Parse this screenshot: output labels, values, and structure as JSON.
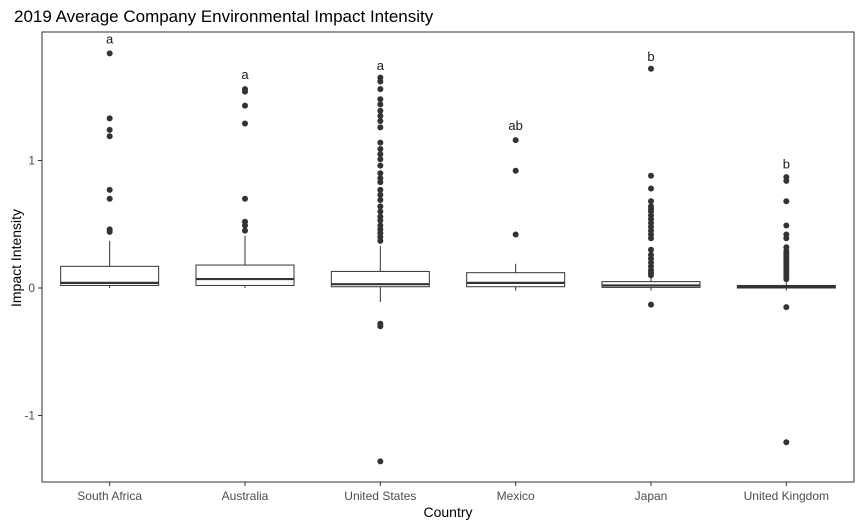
{
  "chart_data": {
    "type": "boxplot",
    "title": "2019 Average Company Environmental Impact Intensity",
    "xlabel": "Country",
    "ylabel": "Impact Intensity",
    "ylim": [
      -1.52,
      2.0
    ],
    "y_ticks": [
      -1,
      0,
      1
    ],
    "y_tick_labels": [
      "-1",
      "0",
      "1"
    ],
    "grid": false,
    "categories": [
      "South Africa",
      "Australia",
      "United States",
      "Mexico",
      "Japan",
      "United Kingdom"
    ],
    "boxes": [
      {
        "category": "South Africa",
        "lower_whisker": 0.0,
        "q1": 0.02,
        "median": 0.04,
        "q3": 0.17,
        "upper_whisker": 0.37,
        "outliers": [
          1.84,
          1.33,
          1.24,
          1.19,
          0.77,
          0.7,
          0.46,
          0.44
        ],
        "group_letter": "a",
        "letter_y": 1.95
      },
      {
        "category": "Australia",
        "lower_whisker": 0.0,
        "q1": 0.02,
        "median": 0.07,
        "q3": 0.18,
        "upper_whisker": 0.41,
        "outliers": [
          1.56,
          1.54,
          1.43,
          1.29,
          0.7,
          0.52,
          0.49,
          0.45
        ],
        "group_letter": "a",
        "letter_y": 1.67
      },
      {
        "category": "United States",
        "lower_whisker": -0.11,
        "q1": 0.01,
        "median": 0.03,
        "q3": 0.13,
        "upper_whisker": 0.33,
        "outliers": [
          1.65,
          1.62,
          1.56,
          1.48,
          1.44,
          1.39,
          1.35,
          1.31,
          1.26,
          1.14,
          1.09,
          1.05,
          1.01,
          0.96,
          0.9,
          0.86,
          0.83,
          0.77,
          0.73,
          0.69,
          0.64,
          0.6,
          0.56,
          0.53,
          0.49,
          0.46,
          0.43,
          0.4,
          0.37,
          -0.28,
          -0.3,
          -1.36
        ],
        "group_letter": "a",
        "letter_y": 1.74
      },
      {
        "category": "Mexico",
        "lower_whisker": -0.02,
        "q1": 0.01,
        "median": 0.04,
        "q3": 0.12,
        "upper_whisker": 0.19,
        "outliers": [
          1.16,
          0.92,
          0.42
        ],
        "group_letter": "ab",
        "letter_y": 1.27
      },
      {
        "category": "Japan",
        "lower_whisker": -0.02,
        "q1": 0.005,
        "median": 0.02,
        "q3": 0.05,
        "upper_whisker": 0.08,
        "outliers": [
          1.72,
          0.88,
          0.78,
          0.68,
          0.64,
          0.62,
          0.6,
          0.57,
          0.54,
          0.51,
          0.48,
          0.45,
          0.42,
          0.39,
          0.3,
          0.26,
          0.23,
          0.2,
          0.17,
          0.14,
          0.12,
          0.1,
          -0.13
        ],
        "group_letter": "b",
        "letter_y": 1.81
      },
      {
        "category": "United Kingdom",
        "lower_whisker": -0.02,
        "q1": 0.0,
        "median": 0.01,
        "q3": 0.02,
        "upper_whisker": 0.05,
        "outliers": [
          0.87,
          0.84,
          0.68,
          0.49,
          0.42,
          0.39,
          0.32,
          0.29,
          0.27,
          0.25,
          0.23,
          0.21,
          0.19,
          0.17,
          0.15,
          0.13,
          0.11,
          0.09,
          0.07,
          -0.15,
          -1.21
        ],
        "group_letter": "b",
        "letter_y": 0.97
      }
    ],
    "colors": {
      "box_fill": "#ffffff",
      "box_line": "#333333",
      "outlier": "#333333",
      "panel_border": "#333333"
    }
  }
}
